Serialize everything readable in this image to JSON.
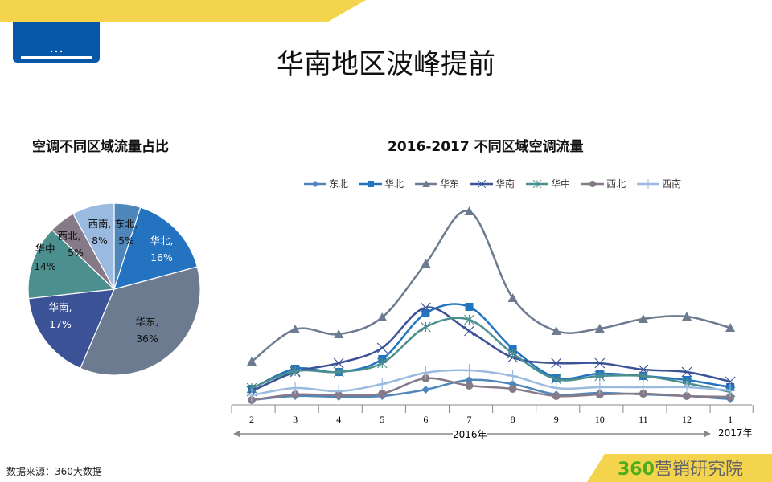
{
  "header": {
    "title": "华南地区波峰提前",
    "ac_icon": "air-conditioner-icon"
  },
  "colors": {
    "banner": "#f4d44c",
    "icon_blue": "#0757a8"
  },
  "pie": {
    "title": "空调不同区域流量占比",
    "chart_data": {
      "type": "pie",
      "title": "空调不同区域流量占比",
      "slices": [
        {
          "label": "东北",
          "value": 5,
          "text": "东北,",
          "pct": "5%",
          "color": "#4f86ba"
        },
        {
          "label": "华北",
          "value": 16,
          "text": "华北,",
          "pct": "16%",
          "color": "#2373c0"
        },
        {
          "label": "华东",
          "value": 36,
          "text": "华东,",
          "pct": "36%",
          "color": "#6d7b91"
        },
        {
          "label": "华南",
          "value": 17,
          "text": "华南,",
          "pct": "17%",
          "color": "#3c5296"
        },
        {
          "label": "华中",
          "value": 14,
          "text": "华中",
          "pct": "14%",
          "color": "#4c8f8f"
        },
        {
          "label": "西北",
          "value": 5,
          "text": "西北,",
          "pct": "5%",
          "color": "#867a88"
        },
        {
          "label": "西南",
          "value": 8,
          "text": "西南,",
          "pct": "8%",
          "color": "#9bbadf"
        }
      ]
    }
  },
  "line": {
    "title": "2016-2017 不同区域空调流量",
    "chart_data": {
      "type": "line",
      "title": "2016-2017 不同区域空调流量",
      "legend": "top",
      "grid": false,
      "categories": [
        "2",
        "3",
        "4",
        "5",
        "6",
        "7",
        "8",
        "9",
        "10",
        "11",
        "12",
        "1"
      ],
      "group_labels": [
        "2016年",
        "2017年"
      ],
      "series": [
        {
          "name": "东北",
          "marker": "diamond",
          "color": "#4f86ba",
          "values": [
            6,
            11,
            10,
            11,
            19,
            31,
            26,
            13,
            15,
            13,
            11,
            7
          ]
        },
        {
          "name": "华北",
          "marker": "square",
          "color": "#2373c0",
          "values": [
            20,
            45,
            41,
            57,
            114,
            122,
            70,
            34,
            39,
            36,
            31,
            22
          ]
        },
        {
          "name": "华东",
          "marker": "triangle",
          "color": "#6d7b91",
          "values": [
            54,
            94,
            88,
            109,
            176,
            241,
            133,
            92,
            95,
            107,
            110,
            96
          ]
        },
        {
          "name": "华南",
          "marker": "x",
          "color": "#3c5296",
          "values": [
            17,
            41,
            52,
            71,
            121,
            92,
            59,
            52,
            52,
            44,
            41,
            29
          ]
        },
        {
          "name": "华中",
          "marker": "star",
          "color": "#4c8f8f",
          "values": [
            21,
            42,
            41,
            52,
            97,
            106,
            64,
            32,
            36,
            36,
            27,
            16
          ]
        },
        {
          "name": "西北",
          "marker": "circle",
          "color": "#867a88",
          "values": [
            6,
            13,
            12,
            14,
            33,
            24,
            20,
            11,
            13,
            14,
            11,
            10
          ]
        },
        {
          "name": "西南",
          "marker": "plus",
          "color": "#9bbadf",
          "values": [
            12,
            21,
            17,
            26,
            40,
            43,
            36,
            21,
            22,
            22,
            22,
            18
          ]
        }
      ]
    }
  },
  "footer": {
    "source": "数据来源：360大数据",
    "brand_num": "360",
    "brand_text": "营销研究院"
  }
}
